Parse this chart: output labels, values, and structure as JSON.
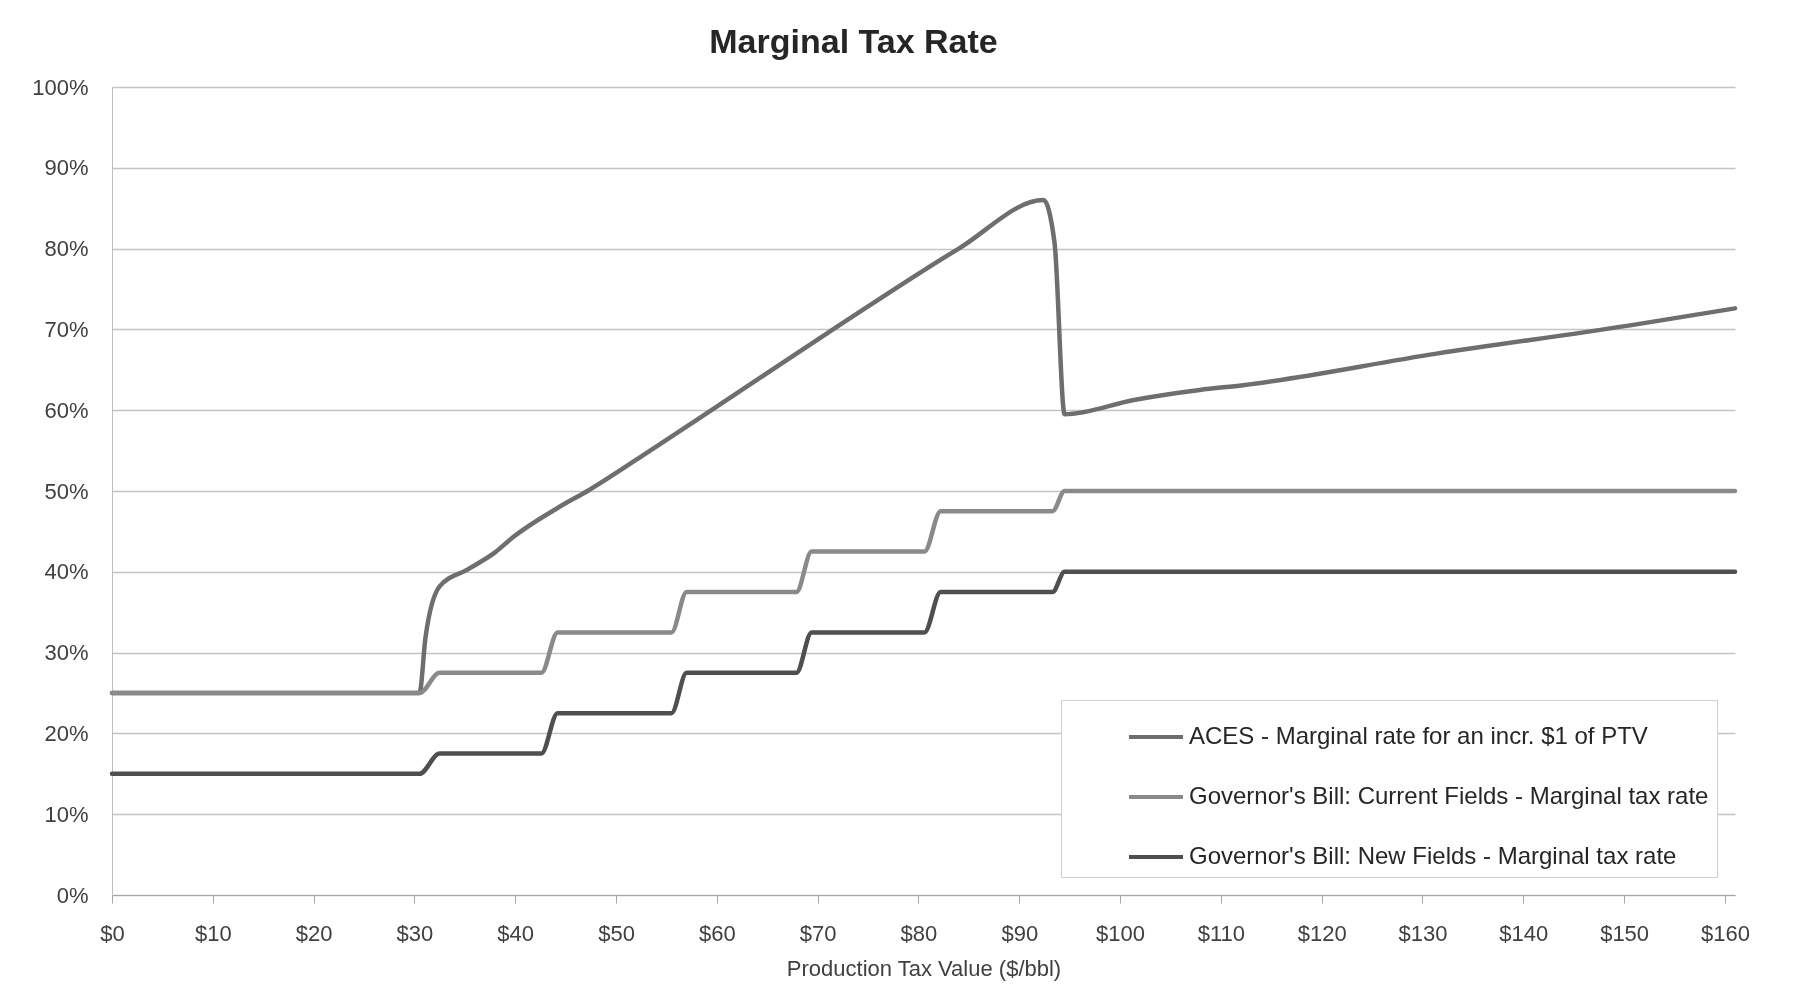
{
  "chart_data": {
    "type": "line",
    "title": "Marginal Tax Rate",
    "xlabel": "Production Tax Value ($/bbl)",
    "x": [
      0,
      30.5,
      32.5,
      42.6,
      44.2,
      55.5,
      57.0,
      67.9,
      69.4,
      80.6,
      82.2,
      93.3,
      94.5,
      161
    ],
    "series": [
      {
        "name": "ACES - Marginal rate for an incr. $1 of PTV",
        "color": "#6e6e6e",
        "x": [
          0,
          30.5,
          31.1,
          32.5,
          35.3,
          38.0,
          39.8,
          44.2,
          47.3,
          53.5,
          59.8,
          71.9,
          84.0,
          92.4,
          93.5,
          94.5,
          101.5,
          107.9,
          112.2,
          131.4,
          150.6,
          161
        ],
        "values": [
          25,
          25,
          31.9,
          38.2,
          40.3,
          42.4,
          44.3,
          47.9,
          50.1,
          55.1,
          60.3,
          70.3,
          80.0,
          86.0,
          80.7,
          59.5,
          61.3,
          62.5,
          63.1,
          67.0,
          70.5,
          72.6
        ]
      },
      {
        "name": "Governor's Bill: Current Fields - Marginal tax rate",
        "color": "#8a8a8a",
        "values": [
          25,
          25,
          27.5,
          27.5,
          32.5,
          32.5,
          37.5,
          37.5,
          42.5,
          42.5,
          47.5,
          47.5,
          50,
          50
        ]
      },
      {
        "name": "Governor's Bill: New Fields - Marginal tax rate",
        "color": "#4f4f4f",
        "values": [
          15,
          15,
          17.5,
          17.5,
          22.5,
          22.5,
          27.5,
          27.5,
          32.5,
          32.5,
          37.5,
          37.5,
          40,
          40
        ]
      }
    ],
    "xlim": [
      0,
      161
    ],
    "xticks": [
      {
        "value": 0,
        "label": "$0"
      },
      {
        "value": 10,
        "label": "$10"
      },
      {
        "value": 20,
        "label": "$20"
      },
      {
        "value": 30,
        "label": "$30"
      },
      {
        "value": 40,
        "label": "$40"
      },
      {
        "value": 50,
        "label": "$50"
      },
      {
        "value": 60,
        "label": "$60"
      },
      {
        "value": 70,
        "label": "$70"
      },
      {
        "value": 80,
        "label": "$80"
      },
      {
        "value": 90,
        "label": "$90"
      },
      {
        "value": 100,
        "label": "$100"
      },
      {
        "value": 110,
        "label": "$110"
      },
      {
        "value": 120,
        "label": "$120"
      },
      {
        "value": 130,
        "label": "$130"
      },
      {
        "value": 140,
        "label": "$140"
      },
      {
        "value": 150,
        "label": "$150"
      },
      {
        "value": 160,
        "label": "$160"
      }
    ],
    "ylim": [
      0,
      100
    ],
    "yticks": [
      {
        "value": 0,
        "label": "0%"
      },
      {
        "value": 10,
        "label": "10%"
      },
      {
        "value": 20,
        "label": "20%"
      },
      {
        "value": 30,
        "label": "30%"
      },
      {
        "value": 40,
        "label": "40%"
      },
      {
        "value": 50,
        "label": "50%"
      },
      {
        "value": 60,
        "label": "60%"
      },
      {
        "value": 70,
        "label": "70%"
      },
      {
        "value": 80,
        "label": "80%"
      },
      {
        "value": 90,
        "label": "90%"
      },
      {
        "value": 100,
        "label": "100%"
      }
    ],
    "grid": "y",
    "legend": "bottom right"
  }
}
